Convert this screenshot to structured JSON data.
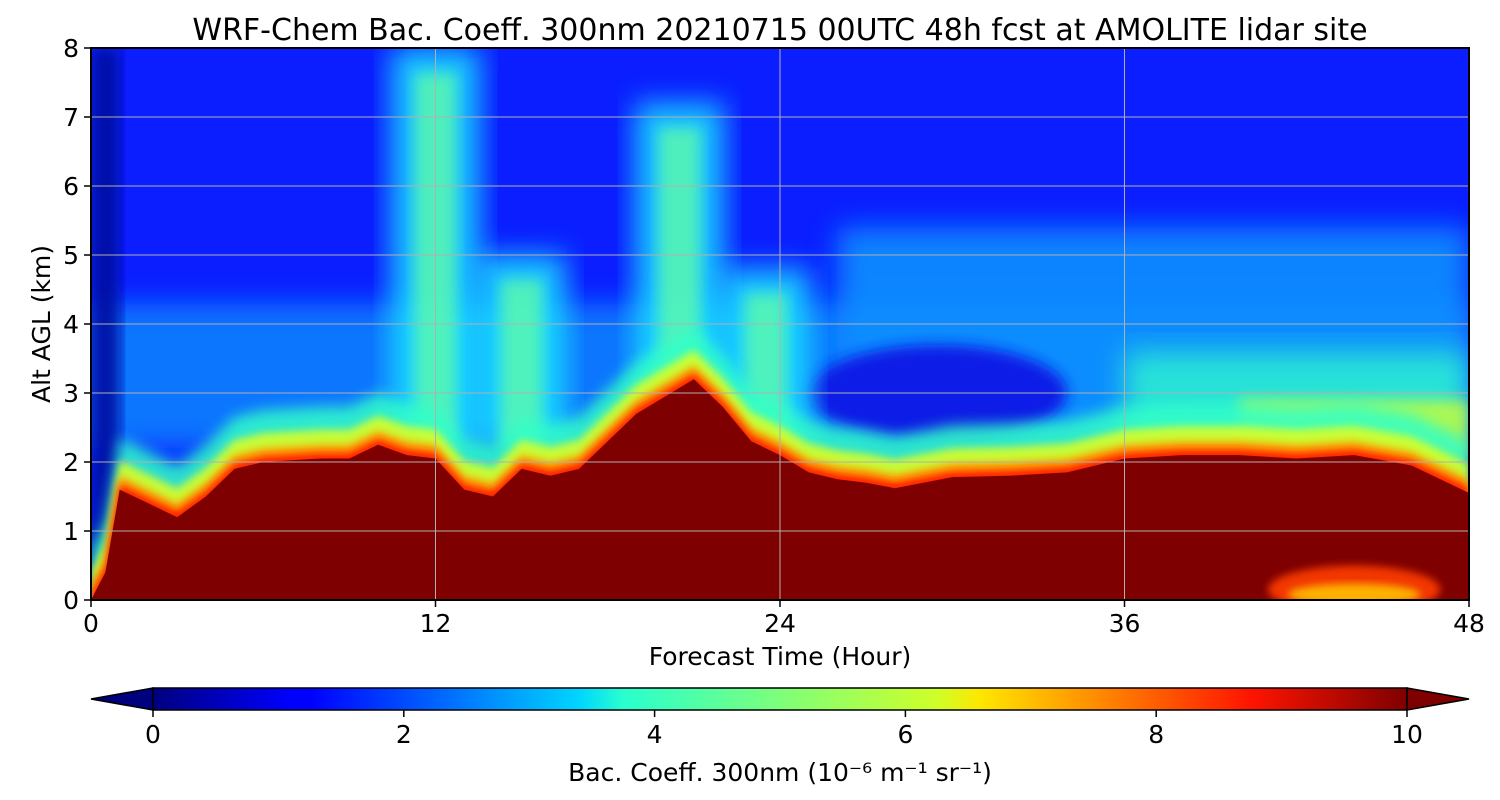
{
  "chart_data": {
    "type": "heatmap",
    "title": "WRF-Chem Bac. Coeff. 300nm  20210715 00UTC 48h fcst at AMOLITE lidar site",
    "xlabel": "Forecast Time (Hour)",
    "ylabel": "Alt AGL (km)",
    "xlim": [
      0,
      48
    ],
    "ylim": [
      0,
      8
    ],
    "x_ticks": [
      "0",
      "12",
      "24",
      "36",
      "48"
    ],
    "y_ticks": [
      "0",
      "1",
      "2",
      "3",
      "4",
      "5",
      "6",
      "7",
      "8"
    ],
    "grid": true,
    "colormap": "jet",
    "colorbar": {
      "label": "Bac. Coeff. 300nm  (10⁻⁶ m⁻¹ sr⁻¹)",
      "range": [
        0,
        10
      ],
      "ticks": [
        "0",
        "2",
        "4",
        "6",
        "8",
        "10"
      ],
      "extend": "both",
      "orientation": "horizontal"
    },
    "boundary_layer_top_km": {
      "x": [
        0,
        0.5,
        1,
        2,
        3,
        4,
        5,
        6,
        8,
        9,
        10,
        11,
        12,
        13,
        14,
        15,
        16,
        17,
        18,
        19,
        20,
        21,
        22,
        23,
        24,
        25,
        26,
        27,
        28,
        29,
        30,
        32,
        34,
        36,
        38,
        40,
        42,
        44,
        46,
        47,
        48
      ],
      "y": [
        0,
        0.4,
        1.6,
        1.4,
        1.2,
        1.5,
        1.9,
        2.0,
        2.05,
        2.05,
        2.25,
        2.1,
        2.05,
        1.6,
        1.5,
        1.9,
        1.8,
        1.9,
        2.3,
        2.7,
        2.95,
        3.2,
        2.8,
        2.3,
        2.1,
        1.85,
        1.75,
        1.7,
        1.62,
        1.7,
        1.78,
        1.8,
        1.85,
        2.05,
        2.1,
        2.1,
        2.05,
        2.1,
        1.95,
        1.75,
        1.55
      ]
    },
    "aerosol_plumes": [
      {
        "x_center": 12,
        "top_km": 8.0
      },
      {
        "x_center": 15,
        "top_km": 5.0
      },
      {
        "x_center": 20.5,
        "top_km": 7.2
      },
      {
        "x_center": 23.5,
        "top_km": 4.8
      }
    ],
    "surface_low_region": {
      "x_range": [
        41,
        47
      ],
      "y_range": [
        0,
        0.35
      ],
      "value": 8
    }
  }
}
